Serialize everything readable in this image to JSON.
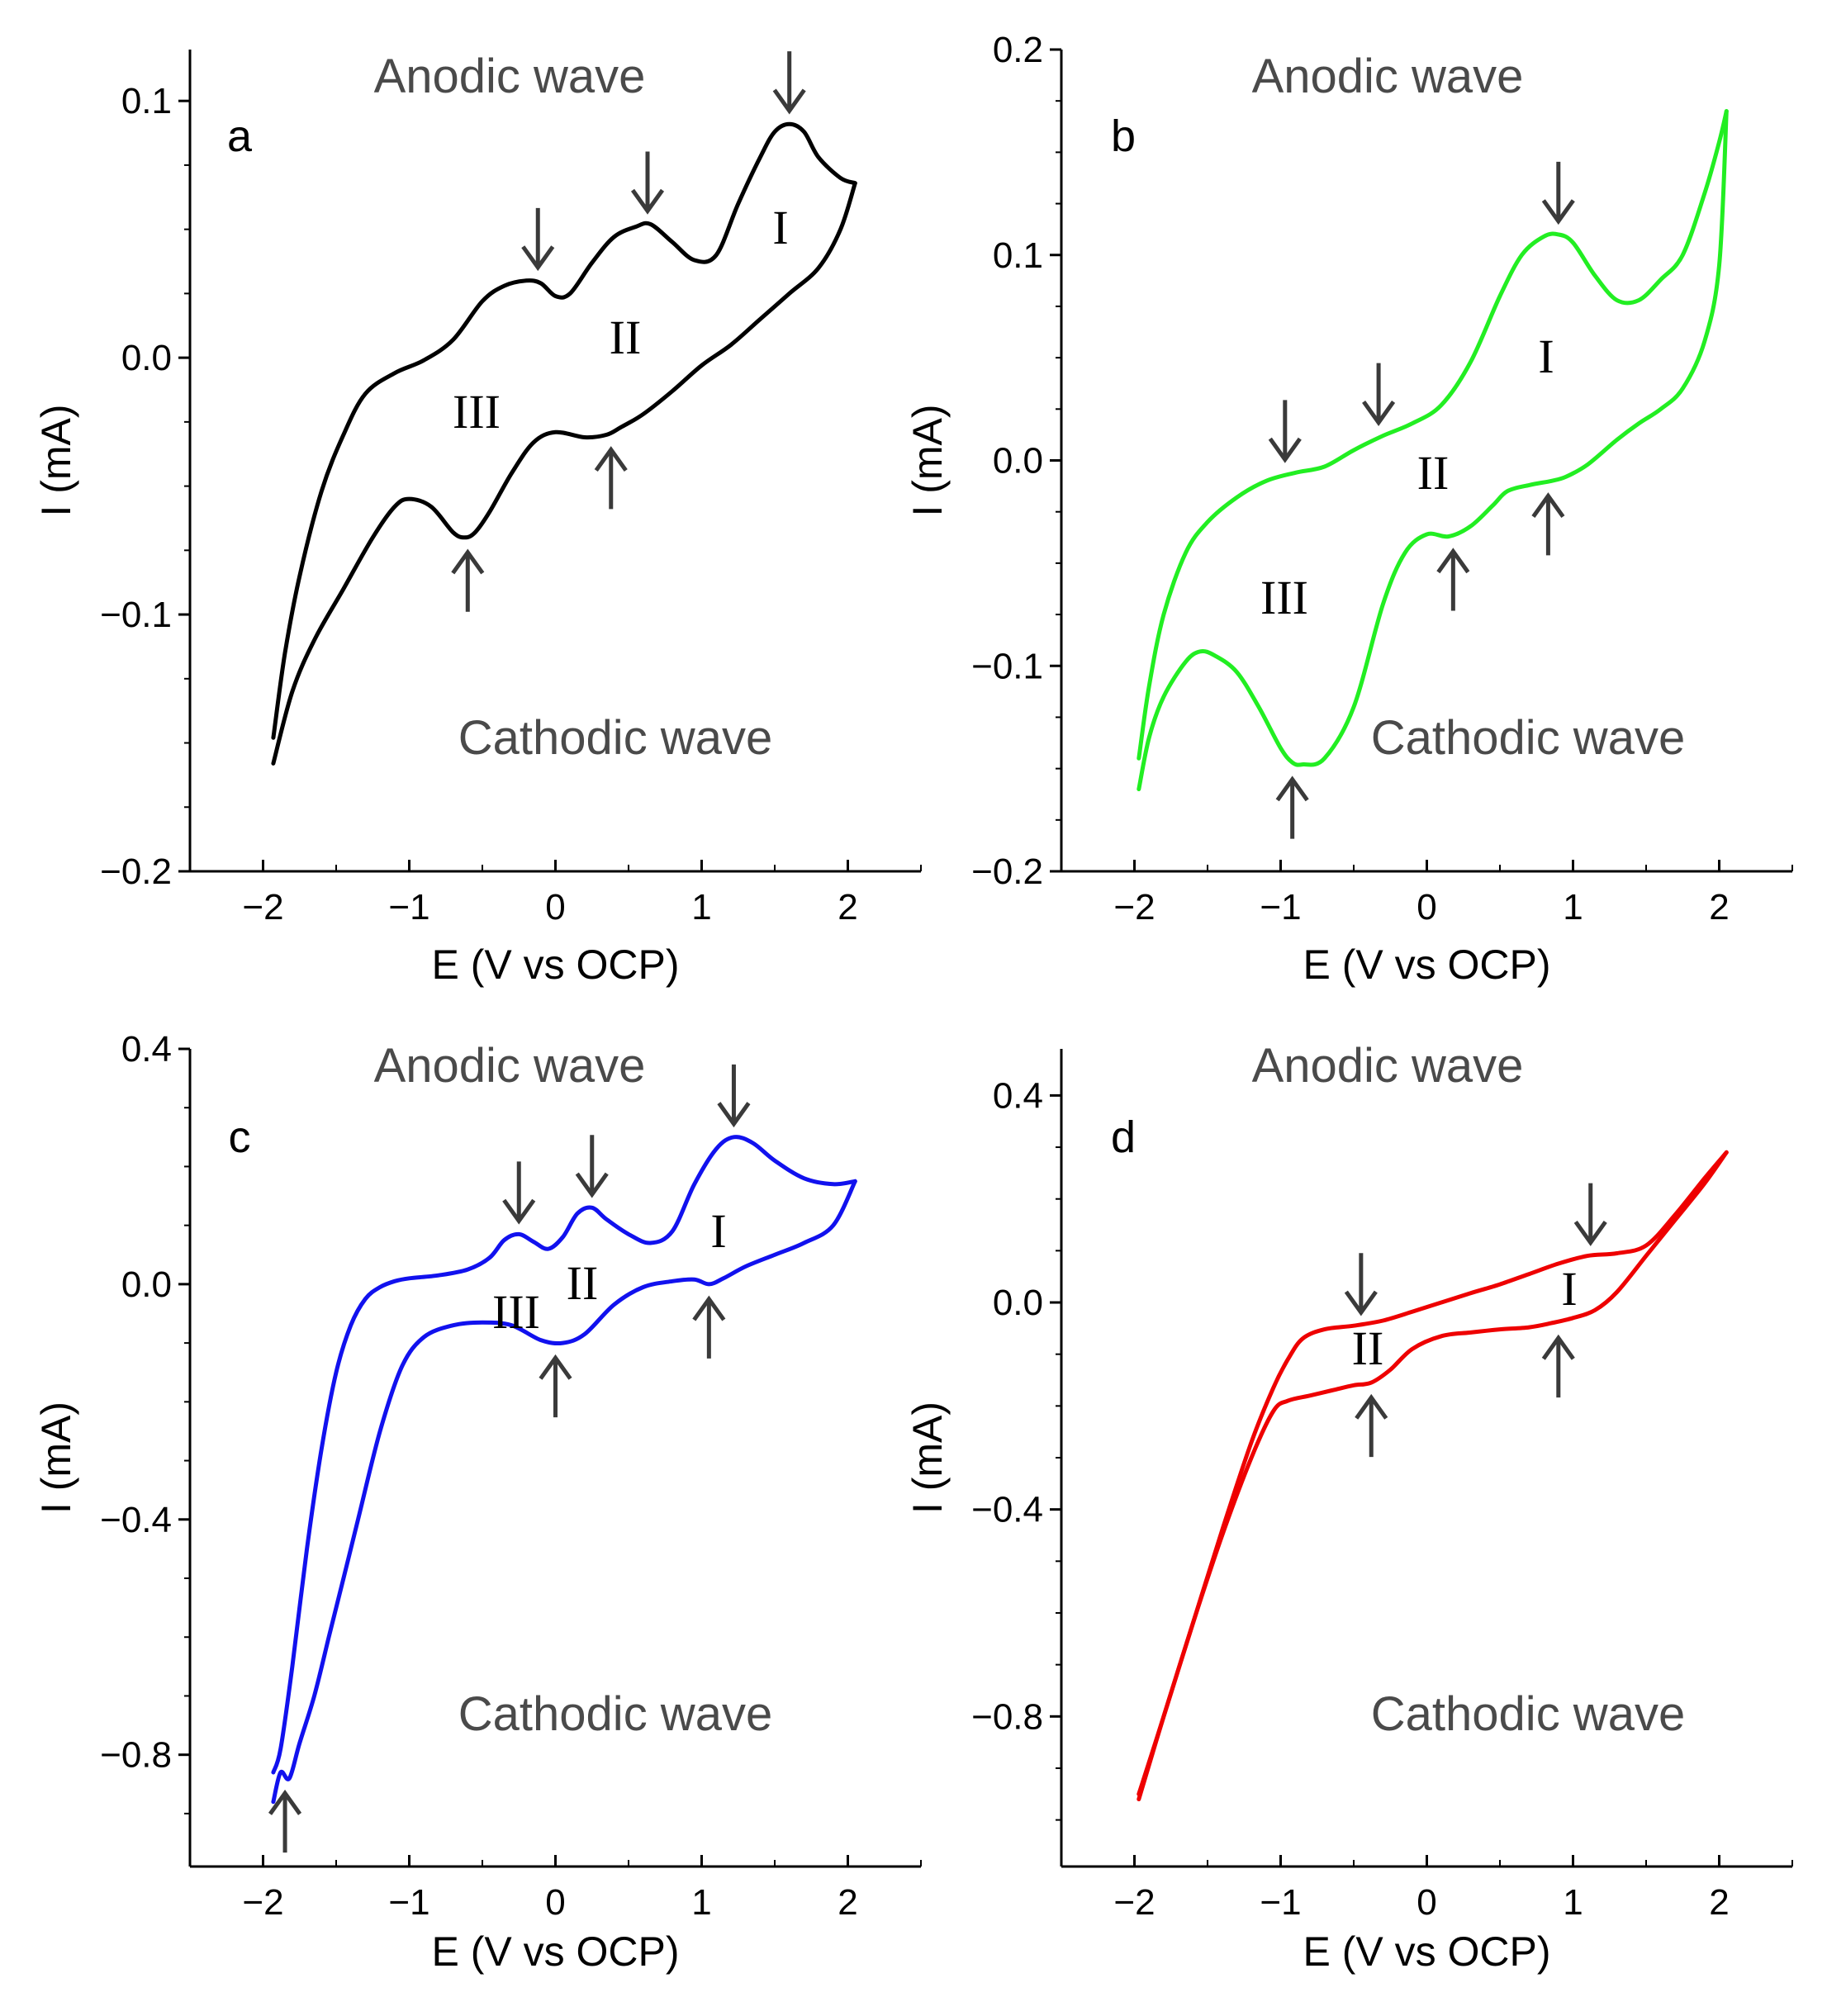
{
  "chart_data": [
    {
      "type": "line",
      "panel": "a",
      "color": "#000000",
      "xlabel": "E (V vs OCP)",
      "ylabel": "I (mA)",
      "xlim": [
        -2.5,
        2.5
      ],
      "ylim": [
        -0.2,
        0.12
      ],
      "xticks": [
        -2,
        -1,
        0,
        1,
        2
      ],
      "xtick_labels": [
        "−2",
        "−1",
        "0",
        "1",
        "2"
      ],
      "yticks": [
        -0.2,
        -0.1,
        0.0,
        0.1
      ],
      "ytick_labels": [
        "−0.2",
        "−0.1",
        "0.0",
        "0.1"
      ],
      "anodic_label": "Anodic wave",
      "cathodic_label": "Cathodic wave",
      "series": [
        {
          "name": "anodic",
          "x": [
            -1.93,
            -1.85,
            -1.75,
            -1.6,
            -1.45,
            -1.3,
            -1.1,
            -0.9,
            -0.7,
            -0.5,
            -0.35,
            -0.2,
            -0.1,
            0.0,
            0.1,
            0.25,
            0.4,
            0.55,
            0.65,
            0.8,
            0.95,
            1.1,
            1.25,
            1.4,
            1.5,
            1.6,
            1.7,
            1.8,
            1.95,
            2.05
          ],
          "y": [
            -0.148,
            -0.115,
            -0.085,
            -0.052,
            -0.03,
            -0.014,
            -0.006,
            -0.001,
            0.007,
            0.022,
            0.028,
            0.03,
            0.029,
            0.024,
            0.025,
            0.037,
            0.047,
            0.051,
            0.052,
            0.045,
            0.038,
            0.04,
            0.06,
            0.078,
            0.088,
            0.091,
            0.088,
            0.078,
            0.07,
            0.068
          ]
        },
        {
          "name": "cathodic",
          "x": [
            2.05,
            1.95,
            1.8,
            1.6,
            1.4,
            1.2,
            1.0,
            0.8,
            0.6,
            0.45,
            0.35,
            0.2,
            0.0,
            -0.15,
            -0.3,
            -0.45,
            -0.55,
            -0.62,
            -0.7,
            -0.85,
            -1.0,
            -1.1,
            -1.25,
            -1.45,
            -1.65,
            -1.8,
            -1.93
          ],
          "y": [
            0.068,
            0.05,
            0.035,
            0.025,
            0.015,
            0.005,
            -0.003,
            -0.013,
            -0.022,
            -0.027,
            -0.03,
            -0.031,
            -0.029,
            -0.033,
            -0.045,
            -0.06,
            -0.068,
            -0.07,
            -0.068,
            -0.058,
            -0.055,
            -0.058,
            -0.07,
            -0.09,
            -0.11,
            -0.13,
            -0.158
          ]
        }
      ],
      "annotations": [
        {
          "text": "a"
        },
        {
          "text": "I",
          "x": 1.55,
          "y": 0.05
        },
        {
          "text": "II",
          "x": 0.5,
          "y": 0.0
        },
        {
          "text": "III",
          "x": -0.55,
          "y": -0.025
        }
      ],
      "arrows": [
        {
          "dir": "down",
          "x": -0.12,
          "y": 0.03
        },
        {
          "dir": "down",
          "x": 0.63,
          "y": 0.052
        },
        {
          "dir": "down",
          "x": 1.6,
          "y": 0.091
        },
        {
          "dir": "up",
          "x": -0.6,
          "y": -0.07
        },
        {
          "dir": "up",
          "x": 0.38,
          "y": -0.03
        }
      ]
    },
    {
      "type": "line",
      "panel": "b",
      "color": "#22ee22",
      "xlabel": "E (V vs OCP)",
      "ylabel": "I (mA)",
      "xlim": [
        -2.5,
        2.5
      ],
      "ylim": [
        -0.2,
        0.2
      ],
      "xticks": [
        -2,
        -1,
        0,
        1,
        2
      ],
      "xtick_labels": [
        "−2",
        "−1",
        "0",
        "1",
        "2"
      ],
      "yticks": [
        -0.2,
        -0.1,
        0.0,
        0.1,
        0.2
      ],
      "ytick_labels": [
        "−0.2",
        "−0.1",
        "0.0",
        "0.1",
        "0.2"
      ],
      "anodic_label": "Anodic wave",
      "cathodic_label": "Cathodic wave",
      "series": [
        {
          "name": "anodic",
          "x": [
            -1.97,
            -1.9,
            -1.8,
            -1.65,
            -1.5,
            -1.3,
            -1.1,
            -0.9,
            -0.7,
            -0.5,
            -0.3,
            -0.1,
            0.1,
            0.3,
            0.5,
            0.65,
            0.8,
            0.9,
            1.0,
            1.15,
            1.3,
            1.45,
            1.6,
            1.75,
            1.9,
            2.0,
            2.05
          ],
          "y": [
            -0.145,
            -0.11,
            -0.075,
            -0.045,
            -0.03,
            -0.018,
            -0.01,
            -0.006,
            -0.003,
            0.005,
            0.012,
            0.018,
            0.027,
            0.048,
            0.08,
            0.1,
            0.109,
            0.11,
            0.106,
            0.09,
            0.078,
            0.078,
            0.088,
            0.1,
            0.13,
            0.155,
            0.17
          ]
        },
        {
          "name": "cathodic",
          "x": [
            2.05,
            2.0,
            1.9,
            1.75,
            1.6,
            1.45,
            1.3,
            1.1,
            0.95,
            0.85,
            0.7,
            0.55,
            0.45,
            0.3,
            0.15,
            0.0,
            -0.15,
            -0.3,
            -0.5,
            -0.7,
            -0.85,
            -0.92,
            -1.0,
            -1.15,
            -1.3,
            -1.45,
            -1.55,
            -1.65,
            -1.8,
            -1.9,
            -1.97
          ],
          "y": [
            0.17,
            0.095,
            0.058,
            0.035,
            0.025,
            0.018,
            0.01,
            -0.002,
            -0.008,
            -0.01,
            -0.012,
            -0.015,
            -0.022,
            -0.032,
            -0.037,
            -0.036,
            -0.045,
            -0.07,
            -0.12,
            -0.145,
            -0.148,
            -0.147,
            -0.14,
            -0.12,
            -0.103,
            -0.095,
            -0.093,
            -0.098,
            -0.115,
            -0.135,
            -0.16
          ]
        }
      ],
      "annotations": [
        {
          "text": "b"
        },
        {
          "text": "I",
          "x": 0.85,
          "y": 0.045
        },
        {
          "text": "II",
          "x": 0.1,
          "y": -0.008
        },
        {
          "text": "III",
          "x": -1.0,
          "y": -0.07
        }
      ],
      "arrows": [
        {
          "dir": "down",
          "x": -0.97,
          "y": -0.006
        },
        {
          "dir": "down",
          "x": -0.33,
          "y": 0.012
        },
        {
          "dir": "down",
          "x": 0.9,
          "y": 0.11
        },
        {
          "dir": "up",
          "x": -0.92,
          "y": -0.148
        },
        {
          "dir": "up",
          "x": 0.18,
          "y": -0.037
        },
        {
          "dir": "up",
          "x": 0.83,
          "y": -0.01
        }
      ]
    },
    {
      "type": "line",
      "panel": "c",
      "color": "#1111ee",
      "xlabel": "E (V vs OCP)",
      "ylabel": "I (mA)",
      "xlim": [
        -2.5,
        2.5
      ],
      "ylim": [
        -0.99,
        0.4
      ],
      "xticks": [
        -2,
        -1,
        0,
        1,
        2
      ],
      "xtick_labels": [
        "−2",
        "−1",
        "0",
        "1",
        "2"
      ],
      "yticks": [
        -0.8,
        -0.4,
        0.0,
        0.4
      ],
      "ytick_labels": [
        "−0.8",
        "−0.4",
        "0.0",
        "0.4"
      ],
      "anodic_label": "Anodic wave",
      "cathodic_label": "Cathodic wave",
      "series": [
        {
          "name": "anodic",
          "x": [
            -1.93,
            -1.88,
            -1.8,
            -1.7,
            -1.6,
            -1.5,
            -1.4,
            -1.3,
            -1.2,
            -1.1,
            -1.0,
            -0.8,
            -0.6,
            -0.45,
            -0.35,
            -0.25,
            -0.15,
            -0.05,
            0.05,
            0.15,
            0.25,
            0.35,
            0.5,
            0.65,
            0.8,
            0.95,
            1.1,
            1.22,
            1.35,
            1.5,
            1.7,
            1.9,
            2.05
          ],
          "y": [
            -0.83,
            -0.79,
            -0.65,
            -0.45,
            -0.28,
            -0.15,
            -0.07,
            -0.025,
            -0.005,
            0.005,
            0.01,
            0.015,
            0.025,
            0.045,
            0.075,
            0.085,
            0.072,
            0.06,
            0.08,
            0.12,
            0.13,
            0.11,
            0.085,
            0.07,
            0.09,
            0.17,
            0.23,
            0.25,
            0.24,
            0.21,
            0.18,
            0.17,
            0.175
          ]
        },
        {
          "name": "cathodic",
          "x": [
            2.05,
            1.9,
            1.7,
            1.5,
            1.3,
            1.15,
            1.05,
            0.95,
            0.8,
            0.6,
            0.4,
            0.2,
            0.05,
            -0.1,
            -0.3,
            -0.5,
            -0.7,
            -0.9,
            -1.05,
            -1.2,
            -1.35,
            -1.45,
            -1.55,
            -1.65,
            -1.75,
            -1.82,
            -1.88,
            -1.93
          ],
          "y": [
            0.175,
            0.1,
            0.07,
            0.05,
            0.03,
            0.01,
            0.0,
            0.008,
            0.005,
            -0.005,
            -0.035,
            -0.085,
            -0.1,
            -0.095,
            -0.07,
            -0.065,
            -0.07,
            -0.09,
            -0.14,
            -0.25,
            -0.4,
            -0.5,
            -0.6,
            -0.7,
            -0.78,
            -0.84,
            -0.83,
            -0.88
          ]
        }
      ],
      "annotations": [
        {
          "text": "c"
        },
        {
          "text": "I",
          "x": 1.12,
          "y": 0.09
        },
        {
          "text": "II",
          "x": 0.18,
          "y": 0.005
        },
        {
          "text": "III",
          "x": -0.28,
          "y": -0.02
        }
      ],
      "arrows": [
        {
          "dir": "down",
          "x": -0.25,
          "y": 0.085
        },
        {
          "dir": "down",
          "x": 0.25,
          "y": 0.13
        },
        {
          "dir": "down",
          "x": 1.22,
          "y": 0.25
        },
        {
          "dir": "up",
          "x": 0.0,
          "y": -0.1
        },
        {
          "dir": "up",
          "x": 1.05,
          "y": 0.0
        },
        {
          "dir": "up",
          "x": -1.85,
          "y": -0.84
        }
      ]
    },
    {
      "type": "line",
      "panel": "d",
      "color": "#ee0000",
      "xlabel": "E (V vs OCP)",
      "ylabel": "I (mA)",
      "xlim": [
        -2.5,
        2.5
      ],
      "ylim": [
        -1.09,
        0.49
      ],
      "xticks": [
        -2,
        -1,
        0,
        1,
        2
      ],
      "xtick_labels": [
        "−2",
        "−1",
        "0",
        "1",
        "2"
      ],
      "yticks": [
        -0.8,
        -0.4,
        0.0,
        0.4
      ],
      "ytick_labels": [
        "−0.8",
        "−0.4",
        "0.0",
        "0.4"
      ],
      "anodic_label": "Anodic wave",
      "cathodic_label": "Cathodic wave",
      "series": [
        {
          "name": "anodic",
          "x": [
            -1.97,
            -1.8,
            -1.6,
            -1.4,
            -1.2,
            -1.05,
            -0.95,
            -0.85,
            -0.7,
            -0.5,
            -0.3,
            -0.1,
            0.1,
            0.3,
            0.5,
            0.7,
            0.9,
            1.1,
            1.3,
            1.5,
            1.7,
            1.9,
            2.05
          ],
          "y": [
            -0.96,
            -0.8,
            -0.62,
            -0.44,
            -0.27,
            -0.165,
            -0.11,
            -0.07,
            -0.052,
            -0.045,
            -0.035,
            -0.018,
            0.0,
            0.018,
            0.035,
            0.055,
            0.075,
            0.09,
            0.095,
            0.11,
            0.17,
            0.24,
            0.29
          ]
        },
        {
          "name": "cathodic",
          "x": [
            2.05,
            1.9,
            1.7,
            1.5,
            1.3,
            1.15,
            1.0,
            0.85,
            0.7,
            0.5,
            0.3,
            0.1,
            -0.1,
            -0.25,
            -0.38,
            -0.5,
            -0.65,
            -0.8,
            -0.95,
            -1.05,
            -1.2,
            -1.4,
            -1.6,
            -1.8,
            -1.97
          ],
          "y": [
            0.29,
            0.23,
            0.16,
            0.09,
            0.02,
            -0.015,
            -0.03,
            -0.04,
            -0.048,
            -0.052,
            -0.058,
            -0.065,
            -0.09,
            -0.13,
            -0.155,
            -0.16,
            -0.17,
            -0.18,
            -0.19,
            -0.21,
            -0.3,
            -0.45,
            -0.62,
            -0.8,
            -0.95
          ]
        }
      ],
      "annotations": [
        {
          "text": "d"
        },
        {
          "text": "I",
          "x": 0.98,
          "y": 0.0
        },
        {
          "text": "II",
          "x": -0.38,
          "y": -0.1
        }
      ],
      "arrows": [
        {
          "dir": "down",
          "x": -0.45,
          "y": -0.045
        },
        {
          "dir": "down",
          "x": 1.12,
          "y": 0.09
        },
        {
          "dir": "up",
          "x": -0.38,
          "y": -0.155
        },
        {
          "dir": "up",
          "x": 0.9,
          "y": -0.04
        }
      ]
    }
  ]
}
